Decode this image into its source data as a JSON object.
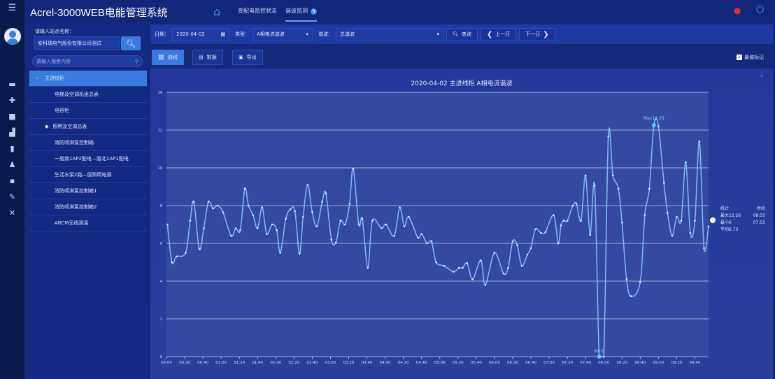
{
  "header": {
    "title": "Acrel-3000WEB电能管理系统",
    "tabs": [
      {
        "label": "变配电监控状态"
      },
      {
        "label": "谐波监测",
        "badge": "8"
      }
    ]
  },
  "rail": {
    "icons": [
      "menu-icon",
      "avatar",
      "chat-icon",
      "puzzle-icon",
      "folder-icon",
      "bar-chart-icon",
      "document-icon",
      "user-icon",
      "camera-icon",
      "edit-icon",
      "tools-icon"
    ]
  },
  "left": {
    "site_label": "请输入站点名称：",
    "site_value": "安科瑞电气股份有限公司测试",
    "tree_search_placeholder": "请输入搜索内容",
    "tree": [
      {
        "label": "主进线柜"
      },
      {
        "label": "电梯及空调机组总表"
      },
      {
        "label": "电容柜"
      },
      {
        "label": "照明及空调总表"
      },
      {
        "label": "消防喷淋泵控制箱"
      },
      {
        "label": "一层南1AP2配电—层北1AP1配电"
      },
      {
        "label": "生活水泵2路—层照明电源"
      },
      {
        "label": "消防喷淋泵控制箱1"
      },
      {
        "label": "消防喷淋泵控制箱2"
      },
      {
        "label": "ARCM无线测温"
      }
    ]
  },
  "filters": {
    "date_label": "日期：",
    "date_value": "2020-04-02",
    "type_label": "类型：",
    "type_value": "A相电流谐波",
    "harmonic_label": "谐波：",
    "harmonic_value": "总谐波",
    "query": "查询",
    "prev": "上一日",
    "next": "下一日"
  },
  "view_tabs": [
    {
      "label": "曲线"
    },
    {
      "label": "数据"
    },
    {
      "label": "导出"
    }
  ],
  "extreme_mark": {
    "label": "最值标记",
    "checked": true
  },
  "colors": {
    "accent": "#3a7be0",
    "line": "#7fb6f0",
    "background": "#15297a"
  },
  "legend": {
    "head": [
      "统计",
      "时间"
    ],
    "rows": [
      [
        "最大12.26",
        "08:55"
      ],
      [
        "最小0",
        "07:55"
      ],
      [
        "平均6.73",
        ""
      ]
    ]
  },
  "chart_data": {
    "type": "line",
    "title": "2020-04-02  主进线柜  A相电流谐波",
    "ylim": [
      0,
      14
    ],
    "yticks": [
      0,
      2,
      4,
      6,
      8,
      10,
      12,
      14
    ],
    "xticks": [
      "00:00",
      "00:20",
      "00:40",
      "01:00",
      "01:20",
      "01:40",
      "02:00",
      "02:20",
      "02:40",
      "03:00",
      "03:20",
      "03:40",
      "04:00",
      "04:20",
      "04:40",
      "05:00",
      "05:20",
      "05:40",
      "06:00",
      "06:20",
      "06:40",
      "07:00",
      "07:20",
      "07:40",
      "08:00",
      "08:20",
      "08:40",
      "09:00",
      "09:20",
      "09:40"
    ],
    "xlim": [
      "00:00",
      "09:55"
    ],
    "grid": true,
    "max_label": "Max12.26",
    "min_label": "Min0",
    "points": [
      [
        "00:01",
        7.0
      ],
      [
        "00:06",
        5.0
      ],
      [
        "00:11",
        5.3
      ],
      [
        "00:21",
        5.5
      ],
      [
        "00:26",
        7.2
      ],
      [
        "00:30",
        8.2
      ],
      [
        "00:36",
        5.7
      ],
      [
        "00:41",
        6.8
      ],
      [
        "00:46",
        8.2
      ],
      [
        "00:51",
        7.85
      ],
      [
        "00:56",
        8.0
      ],
      [
        "01:02",
        7.65
      ],
      [
        "01:11",
        6.4
      ],
      [
        "01:16",
        6.8
      ],
      [
        "01:21",
        6.7
      ],
      [
        "01:26",
        8.9
      ],
      [
        "01:30",
        8.0
      ],
      [
        "01:35",
        7.5
      ],
      [
        "01:40",
        6.8
      ],
      [
        "01:45",
        7.9
      ],
      [
        "01:50",
        6.5
      ],
      [
        "01:56",
        7.0
      ],
      [
        "02:01",
        6.7
      ],
      [
        "02:05",
        5.5
      ],
      [
        "02:11",
        7.3
      ],
      [
        "02:16",
        7.8
      ],
      [
        "02:21",
        7.7
      ],
      [
        "02:26",
        5.45
      ],
      [
        "02:30",
        7.4
      ],
      [
        "02:35",
        9.1
      ],
      [
        "02:40",
        7.65
      ],
      [
        "02:45",
        6.9
      ],
      [
        "02:51",
        8.2
      ],
      [
        "02:55",
        8.65
      ],
      [
        "03:01",
        6.2
      ],
      [
        "03:06",
        6.05
      ],
      [
        "03:11",
        7.2
      ],
      [
        "03:16",
        7.0
      ],
      [
        "03:21",
        8.1
      ],
      [
        "03:25",
        9.96
      ],
      [
        "03:31",
        7.0
      ],
      [
        "03:35",
        7.3
      ],
      [
        "03:41",
        4.7
      ],
      [
        "03:46",
        7.2
      ],
      [
        "03:56",
        6.8
      ],
      [
        "04:01",
        7.0
      ],
      [
        "04:10",
        6.4
      ],
      [
        "04:16",
        7.9
      ],
      [
        "04:21",
        6.9
      ],
      [
        "04:26",
        7.4
      ],
      [
        "04:36",
        6.3
      ],
      [
        "04:40",
        6.5
      ],
      [
        "04:46",
        6.0
      ],
      [
        "04:51",
        6.1
      ],
      [
        "04:56",
        5.0
      ],
      [
        "05:05",
        4.8
      ],
      [
        "05:15",
        4.5
      ],
      [
        "05:21",
        4.7
      ],
      [
        "05:25",
        4.7
      ],
      [
        "05:30",
        4.95
      ],
      [
        "05:36",
        4.1
      ],
      [
        "05:45",
        5.1
      ],
      [
        "05:50",
        3.8
      ],
      [
        "06:00",
        5.5
      ],
      [
        "06:10",
        4.4
      ],
      [
        "06:15",
        4.7
      ],
      [
        "06:20",
        6.1
      ],
      [
        "06:25",
        5.9
      ],
      [
        "06:30",
        4.8
      ],
      [
        "06:36",
        5.4
      ],
      [
        "06:40",
        5.75
      ],
      [
        "06:45",
        6.75
      ],
      [
        "06:51",
        6.55
      ],
      [
        "06:56",
        6.6
      ],
      [
        "07:05",
        7.5
      ],
      [
        "07:10",
        6.0
      ],
      [
        "07:13",
        6.95
      ],
      [
        "07:16",
        7.2
      ],
      [
        "07:20",
        7.2
      ],
      [
        "07:26",
        8.0
      ],
      [
        "07:30",
        8.1
      ],
      [
        "07:35",
        7.2
      ],
      [
        "07:40",
        9.6
      ],
      [
        "07:45",
        6.45
      ],
      [
        "07:50",
        9.05
      ],
      [
        "07:55",
        0
      ],
      [
        "08:00",
        0
      ],
      [
        "08:05",
        11.67
      ],
      [
        "08:10",
        9.6
      ],
      [
        "08:16",
        8.9
      ],
      [
        "08:20",
        7.1
      ],
      [
        "08:25",
        4.1
      ],
      [
        "08:30",
        3.2
      ],
      [
        "08:40",
        3.95
      ],
      [
        "08:45",
        7.5
      ],
      [
        "08:50",
        8.9
      ],
      [
        "08:55",
        12.26
      ],
      [
        "09:00",
        12.2
      ],
      [
        "09:06",
        9.2
      ],
      [
        "09:10",
        7.6
      ],
      [
        "09:15",
        6.4
      ],
      [
        "09:20",
        7.4
      ],
      [
        "09:25",
        7.2
      ],
      [
        "09:30",
        10.3
      ],
      [
        "09:35",
        6.55
      ],
      [
        "09:40",
        7.2
      ],
      [
        "09:45",
        11.4
      ],
      [
        "09:50",
        5.75
      ],
      [
        "09:55",
        6.9
      ]
    ]
  }
}
